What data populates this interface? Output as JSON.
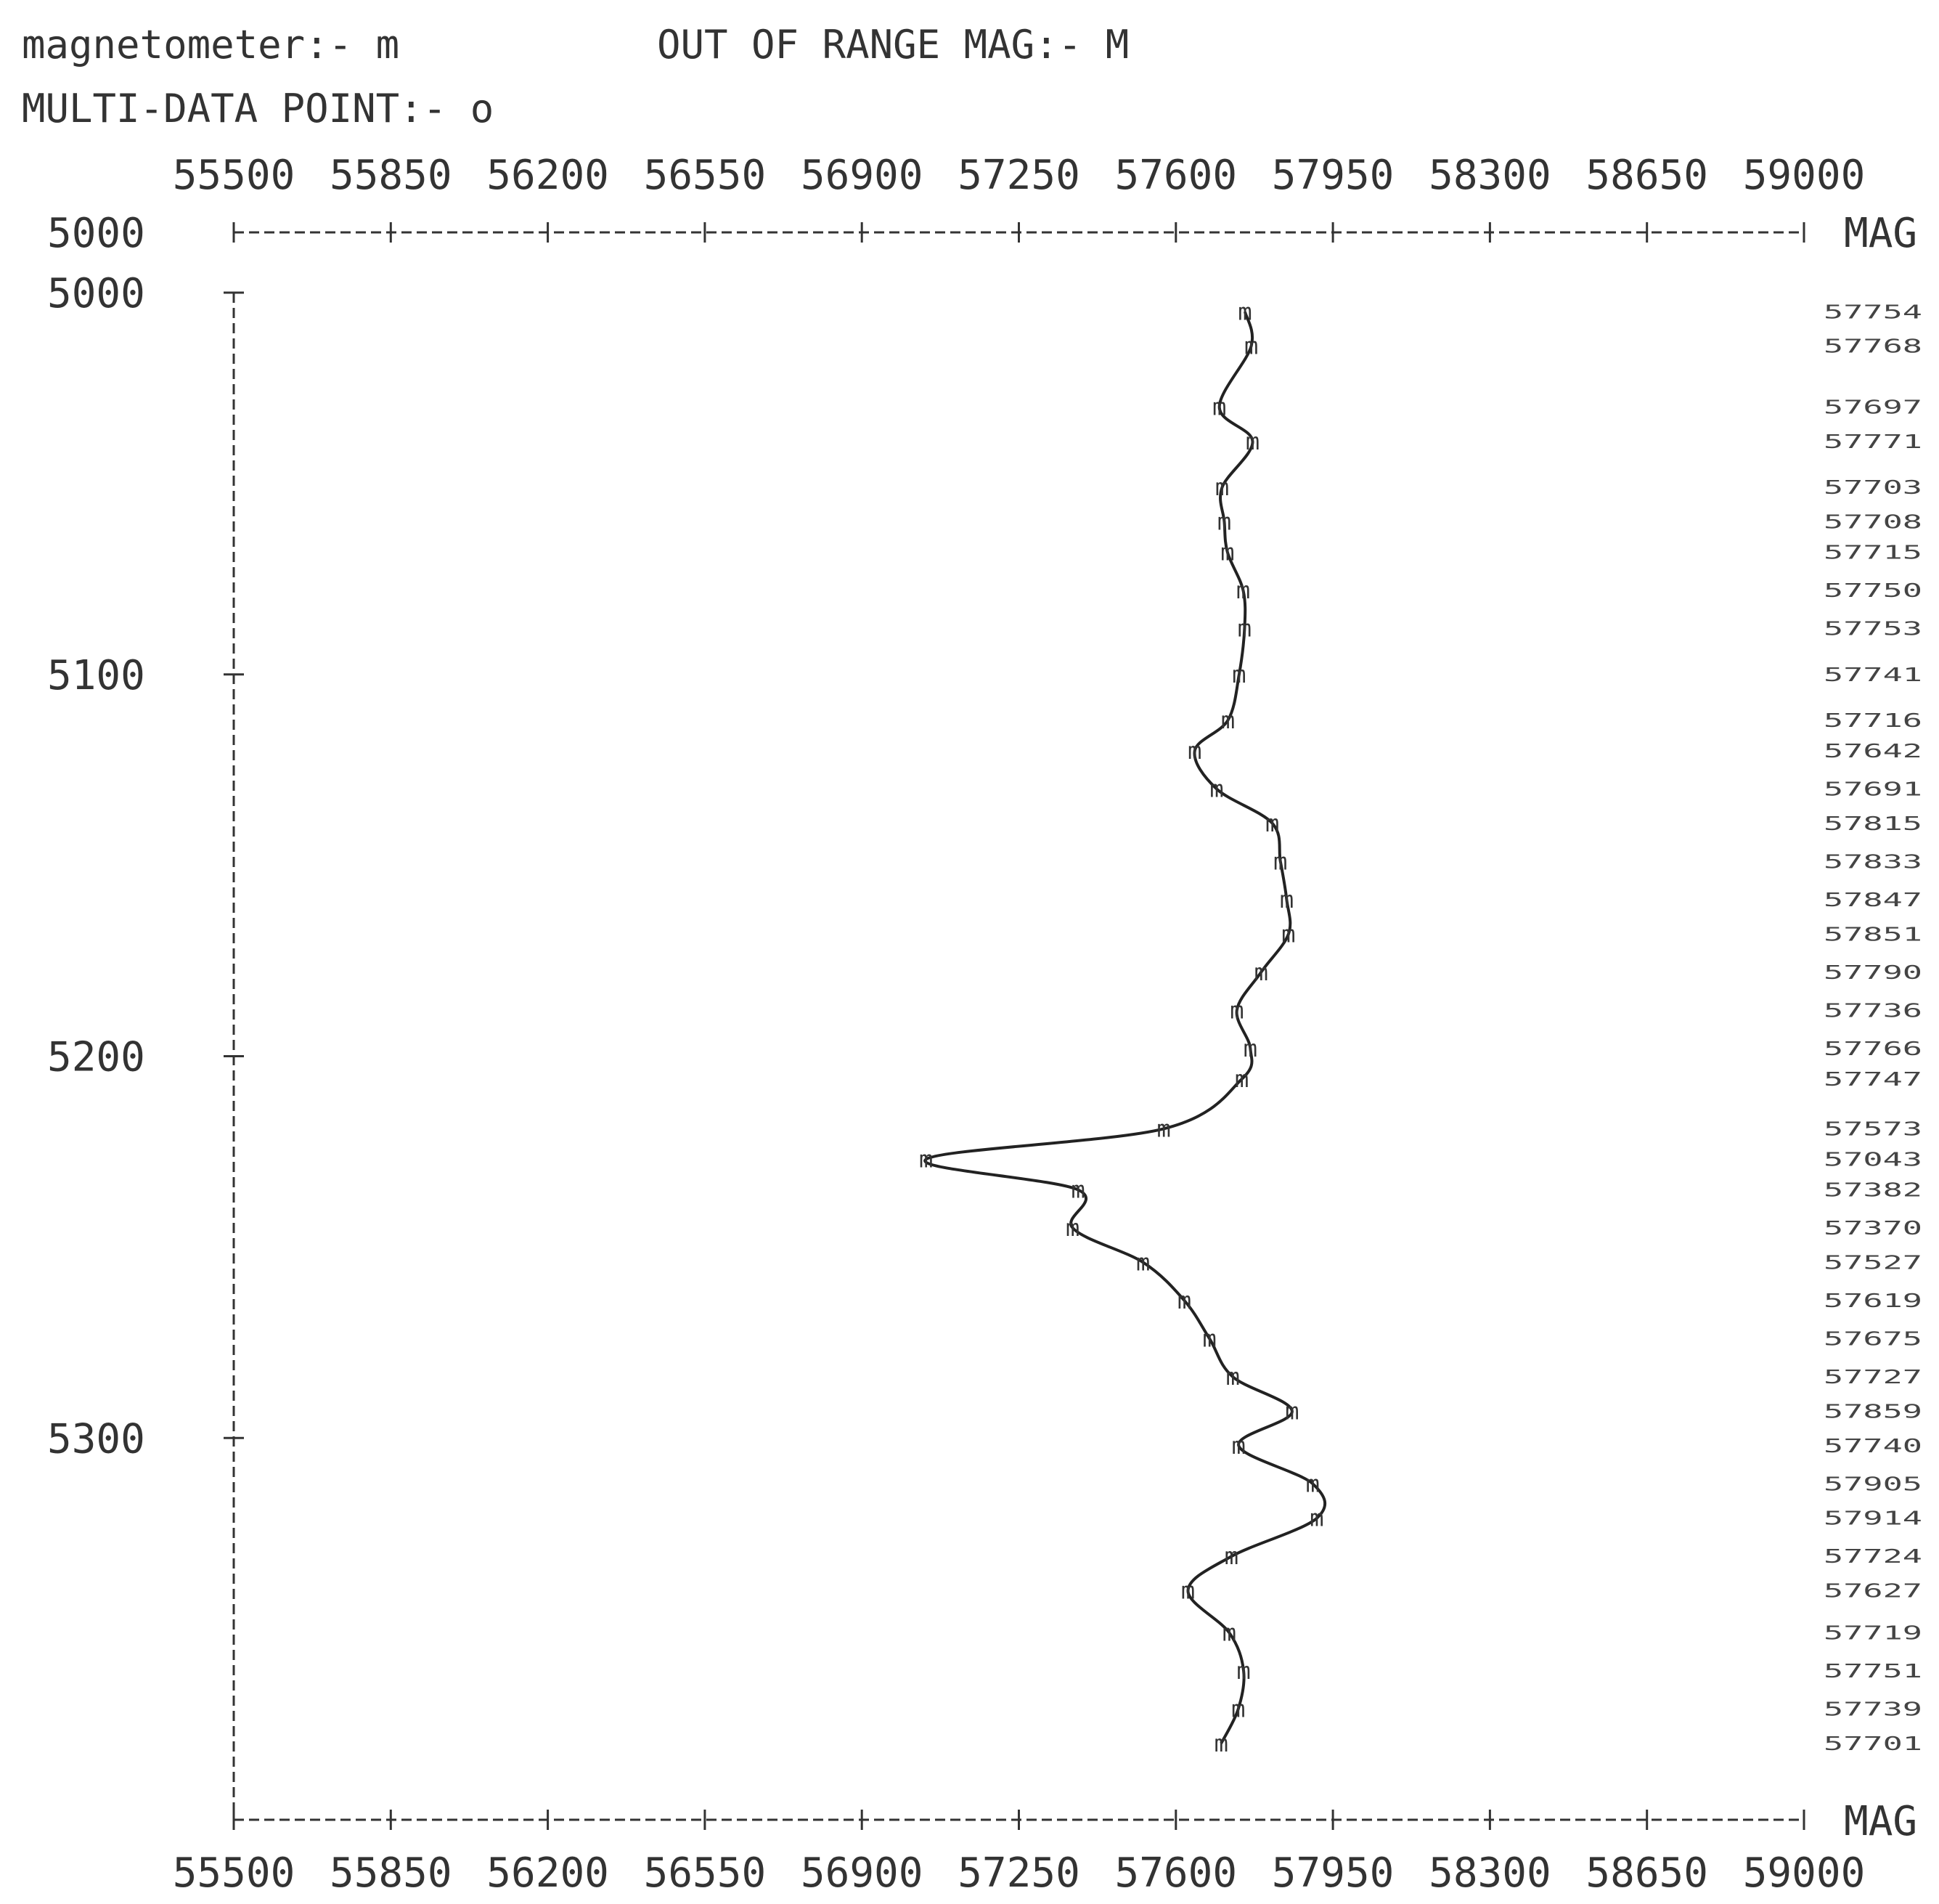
{
  "header": {
    "magnetometer_label": "magnetometer:- m",
    "out_of_range_label": "OUT OF RANGE MAG:- M",
    "multi_data_label": "MULTI-DATA POINT:- o"
  },
  "chart_data": {
    "type": "line",
    "title": "",
    "xlabel": "MAG",
    "ylabel": "",
    "marker": "m",
    "x_ticks": [
      "55500",
      "55850",
      "56200",
      "56550",
      "56900",
      "57250",
      "57600",
      "57950",
      "58300",
      "58650",
      "59000"
    ],
    "xlim": [
      55500,
      59000
    ],
    "y_ticks": [
      "5000",
      "5000",
      "5100",
      "5200",
      "5300"
    ],
    "ylim": [
      5000,
      5400
    ],
    "axis_end_label_top": "MAG",
    "axis_end_label_bottom": "MAG",
    "series": [
      {
        "y": [
          5005,
          5014,
          5030,
          5039,
          5051,
          5060,
          5068,
          5078,
          5088,
          5100,
          5112,
          5120,
          5130,
          5139,
          5149,
          5159,
          5168,
          5178,
          5188,
          5198,
          5206,
          5219,
          5227,
          5235,
          5245,
          5254,
          5264,
          5274,
          5284,
          5293,
          5302,
          5312,
          5321,
          5331,
          5340,
          5351,
          5361,
          5371,
          5380
        ],
        "values": [
          57754,
          57768,
          57697,
          57771,
          57703,
          57708,
          57715,
          57750,
          57753,
          57741,
          57716,
          57642,
          57691,
          57815,
          57833,
          57847,
          57851,
          57790,
          57736,
          57766,
          57747,
          57573,
          57043,
          57382,
          57370,
          57527,
          57619,
          57675,
          57727,
          57859,
          57740,
          57905,
          57914,
          57724,
          57627,
          57719,
          57751,
          57739,
          57701
        ]
      }
    ]
  }
}
